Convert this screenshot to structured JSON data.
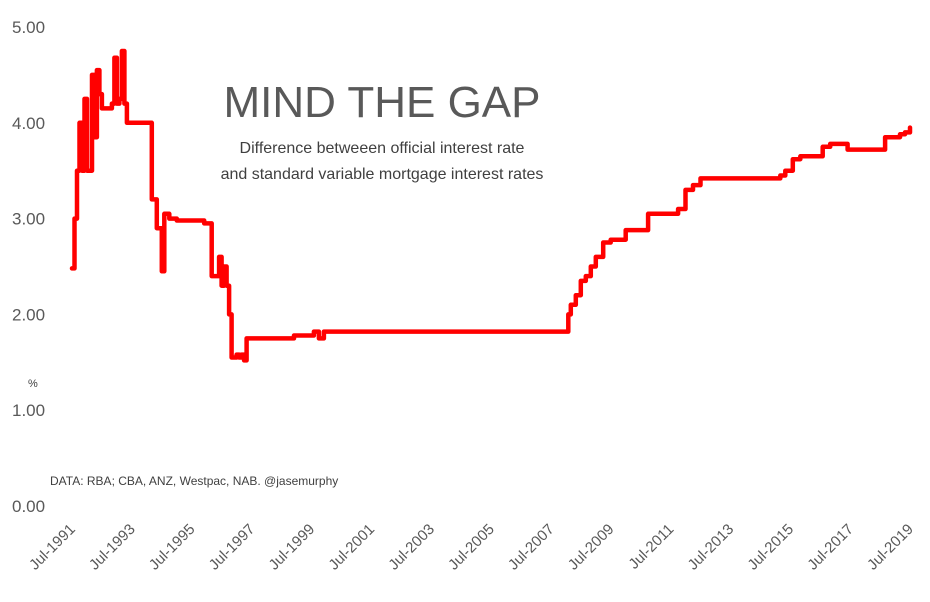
{
  "chart_data": {
    "type": "line",
    "title": "MIND THE GAP",
    "subtitle_lines": [
      "Difference betweeen official interest rate",
      "and standard variable mortgage interest rates"
    ],
    "ylabel": "%",
    "xlabel": "",
    "source_note": "DATA: RBA; CBA, ANZ, Westpac, NAB. @jasemurphy",
    "ylim": [
      0,
      5
    ],
    "yticks": [
      0,
      1,
      2,
      3,
      4,
      5
    ],
    "ytick_labels": [
      "0.00",
      "1.00",
      "2.00",
      "3.00",
      "4.00",
      "5.00"
    ],
    "xlim": [
      "1991-07",
      "2019-07"
    ],
    "xticks": [
      "1991-07",
      "1993-07",
      "1995-07",
      "1997-07",
      "1999-07",
      "2001-07",
      "2003-07",
      "2005-07",
      "2007-07",
      "2009-07",
      "2011-07",
      "2013-07",
      "2015-07",
      "2017-07",
      "2019-07"
    ],
    "xtick_labels": [
      "Jul-1991",
      "Jul-1993",
      "Jul-1995",
      "Jul-1997",
      "Jul-1999",
      "Jul-2001",
      "Jul-2003",
      "Jul-2005",
      "Jul-2007",
      "Jul-2009",
      "Jul-2011",
      "Jul-2013",
      "Jul-2015",
      "Jul-2017",
      "Jul-2019"
    ],
    "grid": false,
    "legend": "none",
    "series": [
      {
        "color": "#ff0000",
        "x": [
          "1991-07",
          "1991-08",
          "1991-09",
          "1991-10",
          "1991-11",
          "1991-12",
          "1992-01",
          "1992-02",
          "1992-03",
          "1992-04",
          "1992-05",
          "1992-06",
          "1992-07",
          "1992-08",
          "1992-09",
          "1992-10",
          "1992-11",
          "1992-12",
          "1993-01",
          "1993-02",
          "1993-03",
          "1993-04",
          "1993-05",
          "1993-06",
          "1993-07",
          "1993-08",
          "1993-09",
          "1993-10",
          "1993-11",
          "1993-12",
          "1994-01",
          "1994-03",
          "1994-05",
          "1994-07",
          "1994-08",
          "1994-09",
          "1994-10",
          "1994-11",
          "1994-12",
          "1995-01",
          "1995-03",
          "1995-06",
          "1995-09",
          "1995-12",
          "1996-03",
          "1996-06",
          "1996-07",
          "1996-08",
          "1996-09",
          "1996-10",
          "1996-11",
          "1996-12",
          "1997-01",
          "1997-02",
          "1997-03",
          "1997-04",
          "1997-05",
          "1997-06",
          "1997-07",
          "1997-08",
          "1997-09",
          "1997-10",
          "1997-11",
          "1998-06",
          "1998-12",
          "1999-06",
          "1999-08",
          "1999-10",
          "1999-12",
          "2000-06",
          "2000-10",
          "2001-06",
          "2002-06",
          "2003-06",
          "2004-06",
          "2005-06",
          "2006-06",
          "2007-06",
          "2008-01",
          "2008-02",
          "2008-03",
          "2008-05",
          "2008-07",
          "2008-09",
          "2008-11",
          "2009-01",
          "2009-04",
          "2009-07",
          "2009-10",
          "2010-01",
          "2010-04",
          "2010-07",
          "2010-10",
          "2011-01",
          "2011-04",
          "2011-07",
          "2011-10",
          "2012-01",
          "2012-04",
          "2012-07",
          "2012-10",
          "2013-01",
          "2013-04",
          "2013-07",
          "2013-10",
          "2014-06",
          "2015-01",
          "2015-03",
          "2015-05",
          "2015-08",
          "2015-11",
          "2016-05",
          "2016-08",
          "2016-11",
          "2017-03",
          "2017-06",
          "2017-09",
          "2017-12",
          "2018-06",
          "2018-09",
          "2018-12",
          "2019-03",
          "2019-05",
          "2019-07"
        ],
        "values": [
          2.48,
          3.0,
          3.5,
          4.0,
          3.5,
          4.25,
          3.5,
          3.5,
          4.5,
          3.85,
          4.55,
          4.3,
          4.15,
          4.15,
          4.15,
          4.15,
          4.2,
          4.68,
          4.2,
          4.25,
          4.75,
          4.2,
          4.0,
          4.0,
          4.0,
          4.0,
          4.0,
          4.0,
          4.0,
          4.0,
          4.0,
          3.2,
          2.9,
          2.45,
          3.05,
          3.05,
          3.0,
          3.0,
          3.0,
          2.98,
          2.98,
          2.98,
          2.98,
          2.95,
          2.4,
          2.6,
          2.3,
          2.5,
          2.3,
          2.0,
          1.55,
          1.55,
          1.58,
          1.55,
          1.58,
          1.52,
          1.75,
          1.75,
          1.75,
          1.75,
          1.75,
          1.75,
          1.75,
          1.75,
          1.78,
          1.78,
          1.82,
          1.75,
          1.82,
          1.82,
          1.82,
          1.82,
          1.82,
          1.82,
          1.82,
          1.82,
          1.82,
          1.82,
          1.82,
          2.0,
          2.1,
          2.2,
          2.35,
          2.4,
          2.5,
          2.6,
          2.75,
          2.78,
          2.78,
          2.88,
          2.88,
          2.88,
          3.05,
          3.05,
          3.05,
          3.05,
          3.1,
          3.3,
          3.35,
          3.42,
          3.42,
          3.42,
          3.42,
          3.42,
          3.42,
          3.42,
          3.42,
          3.45,
          3.5,
          3.62,
          3.65,
          3.65,
          3.75,
          3.78,
          3.78,
          3.72,
          3.72,
          3.72,
          3.72,
          3.85,
          3.85,
          3.88,
          3.9,
          3.95
        ]
      }
    ]
  }
}
